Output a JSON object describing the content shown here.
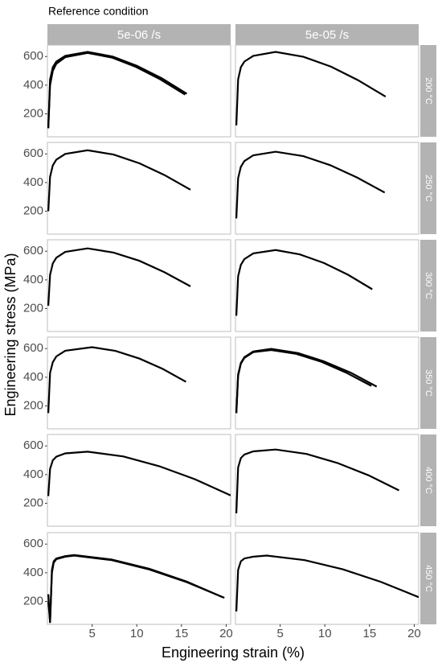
{
  "chart_data": {
    "type": "line",
    "title": "Reference condition",
    "x_label": "Engineering strain (%)",
    "y_label": "Engineering stress (MPa)",
    "xlim": [
      0,
      20.5
    ],
    "ylim": [
      40,
      680
    ],
    "xticks": [
      5,
      10,
      15,
      20
    ],
    "yticks": [
      200,
      400,
      600
    ],
    "grid": false,
    "color": "#000000",
    "columns": [
      "5e-06 /s",
      "5e-05 /s"
    ],
    "rows": [
      {
        "label": "200 °C",
        "panels": [
          {
            "series": [
              {
                "x": [
                  0.1,
                  0.3,
                  0.6,
                  1,
                  2,
                  4.5,
                  7.3,
                  10,
                  12.8,
                  15.6
                ],
                "y": [
                  100,
                  440,
                  525,
                  565,
                  605,
                  632,
                  600,
                  535,
                  448,
                  340
                ]
              },
              {
                "x": [
                  0.1,
                  0.3,
                  0.6,
                  1,
                  2,
                  4.5,
                  7.2,
                  9.9,
                  12.6,
                  15.4
                ],
                "y": [
                  100,
                  400,
                  500,
                  550,
                  595,
                  625,
                  593,
                  528,
                  442,
                  335
                ]
              }
            ]
          },
          {
            "series": [
              {
                "x": [
                  0.1,
                  0.3,
                  0.6,
                  1,
                  2,
                  4.5,
                  7.6,
                  10.7,
                  13.7,
                  16.8
                ],
                "y": [
                  120,
                  440,
                  525,
                  565,
                  605,
                  632,
                  598,
                  529,
                  435,
                  320
                ]
              }
            ]
          }
        ]
      },
      {
        "label": "250 °C",
        "panels": [
          {
            "series": [
              {
                "x": [
                  0.1,
                  0.3,
                  0.6,
                  1,
                  2,
                  4.5,
                  7.4,
                  10.3,
                  13.1,
                  16
                ],
                "y": [
                  200,
                  440,
                  520,
                  560,
                  600,
                  625,
                  595,
                  534,
                  452,
                  350
                ]
              }
            ]
          },
          {
            "series": [
              {
                "x": [
                  0.1,
                  0.3,
                  0.6,
                  1,
                  2,
                  4.5,
                  7.6,
                  10.6,
                  13.6,
                  16.7
                ],
                "y": [
                  150,
                  430,
                  510,
                  550,
                  590,
                  615,
                  584,
                  521,
                  435,
                  330
                ]
              }
            ]
          }
        ]
      },
      {
        "label": "300 °C",
        "panels": [
          {
            "series": [
              {
                "x": [
                  0.1,
                  0.3,
                  0.6,
                  1,
                  2,
                  4.5,
                  7.4,
                  10.3,
                  13.1,
                  16
                ],
                "y": [
                  220,
                  435,
                  515,
                  555,
                  595,
                  620,
                  591,
                  533,
                  453,
                  355
                ]
              }
            ]
          },
          {
            "series": [
              {
                "x": [
                  0.1,
                  0.3,
                  0.6,
                  1,
                  2,
                  4.5,
                  7.2,
                  9.9,
                  12.6,
                  15.3
                ],
                "y": [
                  150,
                  425,
                  505,
                  545,
                  585,
                  608,
                  578,
                  518,
                  436,
                  335
                ]
              }
            ]
          }
        ]
      },
      {
        "label": "350 °C",
        "panels": [
          {
            "series": [
              {
                "x": [
                  0.1,
                  0.3,
                  0.6,
                  1,
                  2,
                  5,
                  7.6,
                  10.3,
                  12.9,
                  15.5
                ],
                "y": [
                  150,
                  430,
                  505,
                  545,
                  585,
                  610,
                  584,
                  530,
                  458,
                  368
                ]
              }
            ]
          },
          {
            "series": [
              {
                "x": [
                  0.1,
                  0.3,
                  0.6,
                  1,
                  2,
                  4,
                  7,
                  9.9,
                  12.9,
                  15.8
                ],
                "y": [
                  150,
                  420,
                  500,
                  540,
                  580,
                  598,
                  569,
                  511,
                  432,
                  335
                ]
              },
              {
                "x": [
                  0.1,
                  0.3,
                  0.6,
                  1,
                  2,
                  4,
                  6.8,
                  9.6,
                  12.4,
                  15.2
                ],
                "y": [
                  150,
                  410,
                  495,
                  535,
                  575,
                  590,
                  563,
                  508,
                  432,
                  340
                ]
              }
            ]
          }
        ]
      },
      {
        "label": "400 °C",
        "panels": [
          {
            "series": [
              {
                "x": [
                  0.1,
                  0.3,
                  0.6,
                  1,
                  2,
                  4.5,
                  8.5,
                  12.5,
                  16.5,
                  20.5
                ],
                "y": [
                  250,
                  440,
                  500,
                  525,
                  548,
                  560,
                  527,
                  459,
                  368,
                  255
                ]
              }
            ]
          },
          {
            "series": [
              {
                "x": [
                  0.1,
                  0.3,
                  0.6,
                  1,
                  2,
                  4.5,
                  7.95,
                  11.4,
                  14.9,
                  18.3
                ],
                "y": [
                  130,
                  450,
                  515,
                  540,
                  562,
                  575,
                  544,
                  481,
                  395,
                  290
                ]
              }
            ]
          }
        ]
      },
      {
        "label": "450 °C",
        "panels": [
          {
            "series": [
              {
                "x": [
                  0.1,
                  0.3,
                  0.5,
                  0.7,
                  1,
                  2,
                  3,
                  7.2,
                  11.4,
                  15.6,
                  19.8
                ],
                "y": [
                  200,
                  60,
                  400,
                  470,
                  495,
                  512,
                  520,
                  488,
                  423,
                  334,
                  225
                ]
              },
              {
                "x": [
                  0.1,
                  0.3,
                  0.5,
                  0.7,
                  1,
                  2,
                  3,
                  7.2,
                  11.4,
                  15.6,
                  19.6
                ],
                "y": [
                  250,
                  50,
                  420,
                  480,
                  500,
                  516,
                  524,
                  492,
                  428,
                  338,
                  230
                ]
              }
            ]
          },
          {
            "series": [
              {
                "x": [
                  0.1,
                  0.3,
                  0.6,
                  1,
                  2,
                  3.5,
                  7.75,
                  12,
                  16.25,
                  20.5
                ],
                "y": [
                  130,
                  420,
                  480,
                  500,
                  512,
                  520,
                  488,
                  424,
                  337,
                  230
                ]
              }
            ]
          }
        ]
      }
    ]
  }
}
